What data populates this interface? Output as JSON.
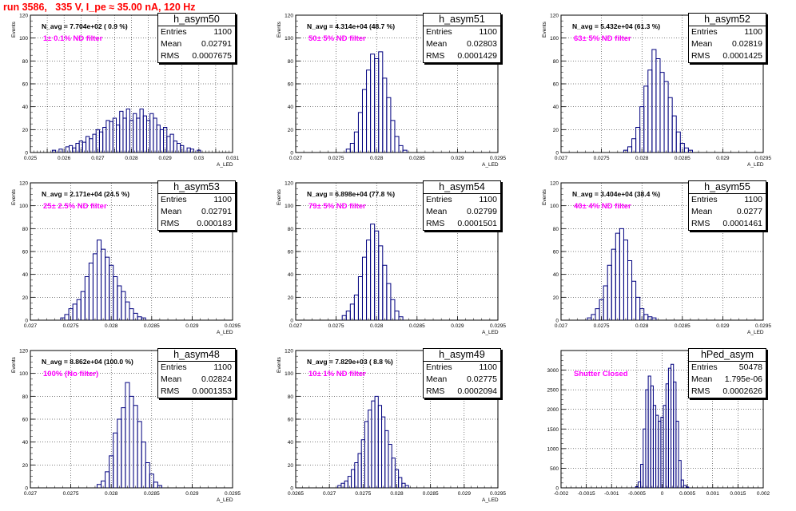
{
  "run_title": "run 3586,   335 V, I_pe ≈ 35.00 nA, 120 Hz",
  "chart_data": [
    {
      "type": "bar",
      "hist_name": "h_asym50",
      "navg": "N_avg = 7.704e+02 ( 0.9 %)",
      "filter": "1± 0.1% ND filter",
      "stats": {
        "entries": "1100",
        "mean": "0.02791",
        "rms": "0.0007675"
      },
      "ylabel": "Events",
      "xlabel": "A_LED",
      "xlim": [
        0.025,
        0.031
      ],
      "ylim": [
        0,
        120
      ],
      "yticks": [
        0,
        20,
        40,
        60,
        80,
        100,
        120
      ],
      "xticks": [
        0.025,
        0.0255,
        0.026,
        0.0265,
        0.027,
        0.0275,
        0.028,
        0.0285,
        0.029,
        0.0295,
        0.03,
        0.0305,
        0.031
      ],
      "xtick_labels": [
        "0.025",
        "",
        "0.026",
        "",
        "0.027",
        "",
        "0.028",
        "",
        "0.029",
        "",
        "0.03",
        "",
        "0.031"
      ],
      "x": [
        0.0257,
        0.0259,
        0.0261,
        0.0262,
        0.0263,
        0.0264,
        0.0265,
        0.0266,
        0.0267,
        0.0268,
        0.0269,
        0.027,
        0.0271,
        0.0272,
        0.0273,
        0.0274,
        0.0275,
        0.0276,
        0.0277,
        0.0278,
        0.0279,
        0.028,
        0.0281,
        0.0282,
        0.0283,
        0.0284,
        0.0285,
        0.0286,
        0.0287,
        0.0288,
        0.0289,
        0.029,
        0.0291,
        0.0292,
        0.0293,
        0.0294,
        0.0295,
        0.0297,
        0.0298,
        0.03
      ],
      "values": [
        2,
        3,
        5,
        6,
        4,
        8,
        10,
        9,
        14,
        12,
        16,
        20,
        18,
        22,
        28,
        27,
        30,
        24,
        36,
        30,
        38,
        28,
        34,
        30,
        38,
        32,
        28,
        34,
        30,
        24,
        20,
        22,
        14,
        16,
        10,
        8,
        6,
        4,
        3,
        2
      ]
    },
    {
      "type": "bar",
      "hist_name": "h_asym51",
      "navg": "N_avg = 4.314e+04 (48.7 %)",
      "filter": "50± 5% ND filter",
      "stats": {
        "entries": "1100",
        "mean": "0.02803",
        "rms": "0.0001429"
      },
      "ylabel": "Events",
      "xlabel": "A_LED",
      "xlim": [
        0.027,
        0.0295
      ],
      "ylim": [
        0,
        120
      ],
      "yticks": [
        0,
        20,
        40,
        60,
        80,
        100,
        120
      ],
      "xticks": [
        0.027,
        0.0275,
        0.028,
        0.0285,
        0.029,
        0.0295
      ],
      "xtick_labels": [
        "0.027",
        "0.0275",
        "0.028",
        "0.0285",
        "0.029",
        "0.0295"
      ],
      "x": [
        0.02765,
        0.0277,
        0.02775,
        0.0278,
        0.02785,
        0.0279,
        0.02795,
        0.028,
        0.02805,
        0.0281,
        0.02815,
        0.0282,
        0.02825,
        0.0283,
        0.02835
      ],
      "values": [
        3,
        8,
        18,
        35,
        55,
        72,
        86,
        82,
        88,
        65,
        48,
        28,
        14,
        6,
        2
      ]
    },
    {
      "type": "bar",
      "hist_name": "h_asym52",
      "navg": "N_avg = 5.432e+04 (61.3 %)",
      "filter": "63± 5% ND filter",
      "stats": {
        "entries": "1100",
        "mean": "0.02819",
        "rms": "0.0001425"
      },
      "ylabel": "Events",
      "xlabel": "A_LED",
      "xlim": [
        0.027,
        0.0295
      ],
      "ylim": [
        0,
        120
      ],
      "yticks": [
        0,
        20,
        40,
        60,
        80,
        100,
        120
      ],
      "xticks": [
        0.027,
        0.0275,
        0.028,
        0.0285,
        0.029,
        0.0295
      ],
      "xtick_labels": [
        "0.027",
        "0.0275",
        "0.028",
        "0.0285",
        "0.029",
        "0.0295"
      ],
      "x": [
        0.0278,
        0.02785,
        0.0279,
        0.02795,
        0.028,
        0.02805,
        0.0281,
        0.02815,
        0.0282,
        0.02825,
        0.0283,
        0.02835,
        0.0284,
        0.02845,
        0.0285,
        0.02855,
        0.0286
      ],
      "values": [
        2,
        5,
        12,
        22,
        40,
        58,
        72,
        90,
        82,
        70,
        62,
        48,
        32,
        18,
        8,
        4,
        2
      ]
    },
    {
      "type": "bar",
      "hist_name": "h_asym53",
      "navg": "N_avg = 2.171e+04 (24.5 %)",
      "filter": "25± 2.5% ND filter",
      "stats": {
        "entries": "1100",
        "mean": "0.02791",
        "rms": "0.000183"
      },
      "ylabel": "Events",
      "xlabel": "A_LED",
      "xlim": [
        0.027,
        0.0295
      ],
      "ylim": [
        0,
        120
      ],
      "yticks": [
        0,
        20,
        40,
        60,
        80,
        100,
        120
      ],
      "xticks": [
        0.027,
        0.0275,
        0.028,
        0.0285,
        0.029,
        0.0295
      ],
      "xtick_labels": [
        "0.027",
        "0.0275",
        "0.028",
        "0.0285",
        "0.029",
        "0.0295"
      ],
      "x": [
        0.0274,
        0.02745,
        0.0275,
        0.02755,
        0.0276,
        0.02765,
        0.0277,
        0.02775,
        0.0278,
        0.02785,
        0.0279,
        0.02795,
        0.028,
        0.02805,
        0.0281,
        0.02815,
        0.0282,
        0.02825,
        0.0283,
        0.02835,
        0.0284
      ],
      "values": [
        2,
        5,
        10,
        14,
        18,
        25,
        38,
        50,
        58,
        70,
        62,
        55,
        48,
        38,
        30,
        25,
        16,
        10,
        6,
        3,
        2
      ]
    },
    {
      "type": "bar",
      "hist_name": "h_asym54",
      "navg": "N_avg = 6.898e+04 (77.8 %)",
      "filter": "79± 5% ND filter",
      "stats": {
        "entries": "1100",
        "mean": "0.02799",
        "rms": "0.0001501"
      },
      "ylabel": "Events",
      "xlabel": "A_LED",
      "xlim": [
        0.027,
        0.0295
      ],
      "ylim": [
        0,
        120
      ],
      "yticks": [
        0,
        20,
        40,
        60,
        80,
        100,
        120
      ],
      "xticks": [
        0.027,
        0.0275,
        0.028,
        0.0285,
        0.029,
        0.0295
      ],
      "xtick_labels": [
        "0.027",
        "0.0275",
        "0.028",
        "0.0285",
        "0.029",
        "0.0295"
      ],
      "x": [
        0.0276,
        0.02765,
        0.0277,
        0.02775,
        0.0278,
        0.02785,
        0.0279,
        0.02795,
        0.028,
        0.02805,
        0.0281,
        0.02815,
        0.0282,
        0.02825,
        0.0283
      ],
      "values": [
        4,
        8,
        14,
        22,
        38,
        55,
        70,
        84,
        78,
        65,
        48,
        32,
        18,
        8,
        3
      ]
    },
    {
      "type": "bar",
      "hist_name": "h_asym55",
      "navg": "N_avg = 3.404e+04 (38.4 %)",
      "filter": "40± 4% ND filter",
      "stats": {
        "entries": "1100",
        "mean": "0.0277",
        "rms": "0.0001461"
      },
      "ylabel": "Events",
      "xlabel": "A_LED",
      "xlim": [
        0.027,
        0.0295
      ],
      "ylim": [
        0,
        120
      ],
      "yticks": [
        0,
        20,
        40,
        60,
        80,
        100,
        120
      ],
      "xticks": [
        0.027,
        0.0275,
        0.028,
        0.0285,
        0.029,
        0.0295
      ],
      "xtick_labels": [
        "0.027",
        "0.0275",
        "0.028",
        "0.0285",
        "0.029",
        "0.0295"
      ],
      "x": [
        0.02735,
        0.0274,
        0.02745,
        0.0275,
        0.02755,
        0.0276,
        0.02765,
        0.0277,
        0.02775,
        0.0278,
        0.02785,
        0.0279,
        0.02795,
        0.028,
        0.02805,
        0.0281,
        0.02815
      ],
      "values": [
        2,
        5,
        10,
        18,
        30,
        48,
        62,
        76,
        80,
        70,
        52,
        34,
        20,
        10,
        5,
        3,
        2
      ]
    },
    {
      "type": "bar",
      "hist_name": "h_asym48",
      "navg": "N_avg = 8.862e+04 (100.0 %)",
      "filter": "100% (No filter)",
      "stats": {
        "entries": "1100",
        "mean": "0.02824",
        "rms": "0.0001353"
      },
      "ylabel": "Events",
      "xlabel": "A_LED",
      "xlim": [
        0.027,
        0.0295
      ],
      "ylim": [
        0,
        120
      ],
      "yticks": [
        0,
        20,
        40,
        60,
        80,
        100,
        120
      ],
      "xticks": [
        0.027,
        0.0275,
        0.028,
        0.0285,
        0.029,
        0.0295
      ],
      "xtick_labels": [
        "0.027",
        "0.0275",
        "0.028",
        "0.0285",
        "0.029",
        "0.0295"
      ],
      "x": [
        0.02785,
        0.0279,
        0.02795,
        0.028,
        0.02805,
        0.0281,
        0.02815,
        0.0282,
        0.02825,
        0.0283,
        0.02835,
        0.0284,
        0.02845,
        0.0285,
        0.02855,
        0.0286
      ],
      "values": [
        3,
        6,
        14,
        28,
        48,
        60,
        70,
        92,
        80,
        72,
        58,
        40,
        22,
        12,
        5,
        2
      ]
    },
    {
      "type": "bar",
      "hist_name": "h_asym49",
      "navg": "N_avg = 7.829e+03 ( 8.8 %)",
      "filter": "10± 1% ND filter",
      "stats": {
        "entries": "1100",
        "mean": "0.02775",
        "rms": "0.0002094"
      },
      "ylabel": "Events",
      "xlabel": "A_LED",
      "xlim": [
        0.0265,
        0.0295
      ],
      "ylim": [
        0,
        120
      ],
      "yticks": [
        0,
        20,
        40,
        60,
        80,
        100,
        120
      ],
      "xticks": [
        0.0265,
        0.027,
        0.0275,
        0.028,
        0.0285,
        0.029,
        0.0295
      ],
      "xtick_labels": [
        "0.0265",
        "0.027",
        "0.0275",
        "0.028",
        "0.0285",
        "0.029",
        "0.0295"
      ],
      "x": [
        0.02715,
        0.0272,
        0.02725,
        0.0273,
        0.02735,
        0.0274,
        0.02745,
        0.0275,
        0.02755,
        0.0276,
        0.02765,
        0.0277,
        0.02775,
        0.0278,
        0.02785,
        0.0279,
        0.02795,
        0.028,
        0.02805,
        0.0281,
        0.02815
      ],
      "values": [
        2,
        4,
        6,
        10,
        16,
        22,
        30,
        42,
        58,
        68,
        76,
        80,
        72,
        62,
        50,
        38,
        26,
        16,
        9,
        4,
        2
      ]
    },
    {
      "type": "bar",
      "hist_name": "hPed_asym",
      "navg": "",
      "filter": "Shutter Closed",
      "stats": {
        "entries": "50478",
        "mean": "1.795e-06",
        "rms": "0.0002626"
      },
      "ylabel": "",
      "xlabel": "",
      "xlim": [
        -0.002,
        0.002
      ],
      "ylim": [
        0,
        3500
      ],
      "yticks": [
        0,
        500,
        1000,
        1500,
        2000,
        2500,
        3000
      ],
      "xticks": [
        -0.002,
        -0.0015,
        -0.001,
        -0.0005,
        0,
        0.0005,
        0.001,
        0.0015,
        0.002
      ],
      "xtick_labels": [
        "-0.002",
        "-0.0015",
        "-0.001",
        "-0.0005",
        "0",
        "0.0005",
        "0.001",
        "0.0015",
        "0.002"
      ],
      "x": [
        -0.0005,
        -0.00045,
        -0.0004,
        -0.00035,
        -0.0003,
        -0.00025,
        -0.0002,
        -0.00015,
        -0.0001,
        -5e-05,
        0.0,
        5e-05,
        0.0001,
        0.00015,
        0.0002,
        0.00025,
        0.0003,
        0.00035,
        0.0004,
        0.00045,
        0.0005
      ],
      "values": [
        30,
        150,
        600,
        1500,
        2500,
        2850,
        2600,
        2100,
        1850,
        1700,
        1800,
        2100,
        2650,
        3050,
        3150,
        2700,
        1700,
        700,
        200,
        60,
        20
      ]
    }
  ]
}
